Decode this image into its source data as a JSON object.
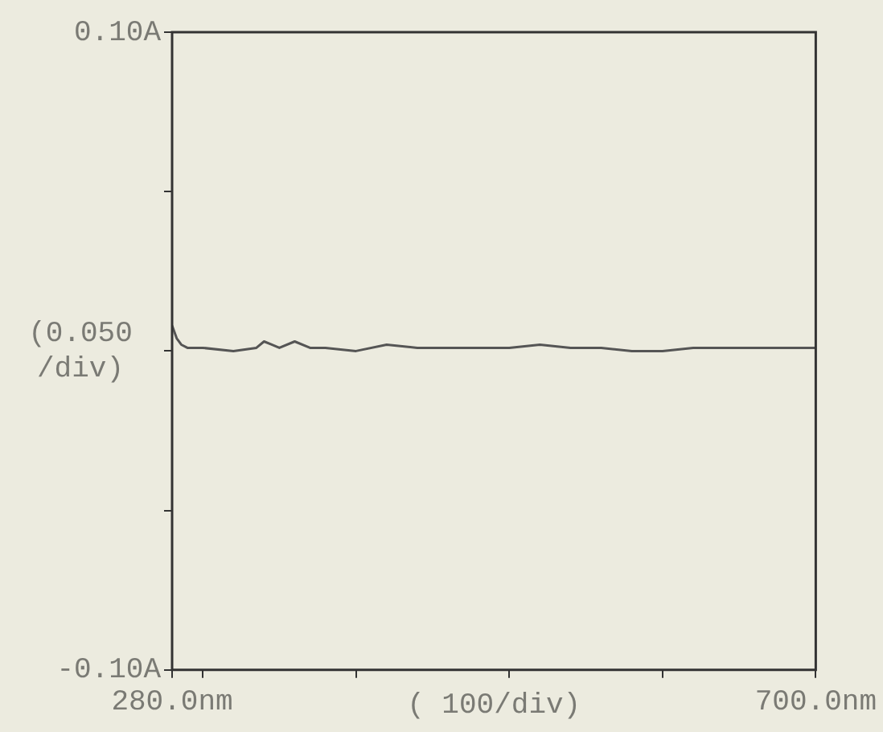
{
  "chart_data": {
    "type": "line",
    "xlabel": "( 100/div)",
    "ylabel": "(0.050\n/div)",
    "x": [
      280,
      283,
      286,
      290,
      300,
      320,
      335,
      340,
      345,
      350,
      360,
      370,
      380,
      400,
      420,
      440,
      460,
      480,
      500,
      520,
      540,
      560,
      580,
      600,
      620,
      640,
      660,
      680,
      700
    ],
    "series": [
      {
        "color": "#555555",
        "values": [
          0.008,
          0.004,
          0.002,
          0.001,
          0.001,
          0.0,
          0.001,
          0.003,
          0.002,
          0.001,
          0.003,
          0.001,
          0.001,
          0.0,
          0.002,
          0.001,
          0.001,
          0.001,
          0.001,
          0.002,
          0.001,
          0.001,
          0.0,
          0.0,
          0.001,
          0.001,
          0.001,
          0.001,
          0.001
        ]
      }
    ],
    "xlim": [
      280,
      700
    ],
    "xticks": [
      {
        "value": 280,
        "label": "280.0nm"
      },
      {
        "value": 300,
        "label": null
      },
      {
        "value": 400,
        "label": null
      },
      {
        "value": 500,
        "label": null
      },
      {
        "value": 600,
        "label": null
      },
      {
        "value": 700,
        "label": "700.0nm"
      }
    ],
    "ylim": [
      -0.1,
      0.1
    ],
    "yticks": [
      {
        "value": -0.1,
        "label": "-0.10A"
      },
      {
        "value": -0.05,
        "label": null
      },
      {
        "value": 0,
        "label": null
      },
      {
        "value": 0.05,
        "label": null
      },
      {
        "value": 0.1,
        "label": "0.10A"
      }
    ],
    "grid": false,
    "legend": false,
    "marker": "none",
    "line_style": "solid"
  }
}
